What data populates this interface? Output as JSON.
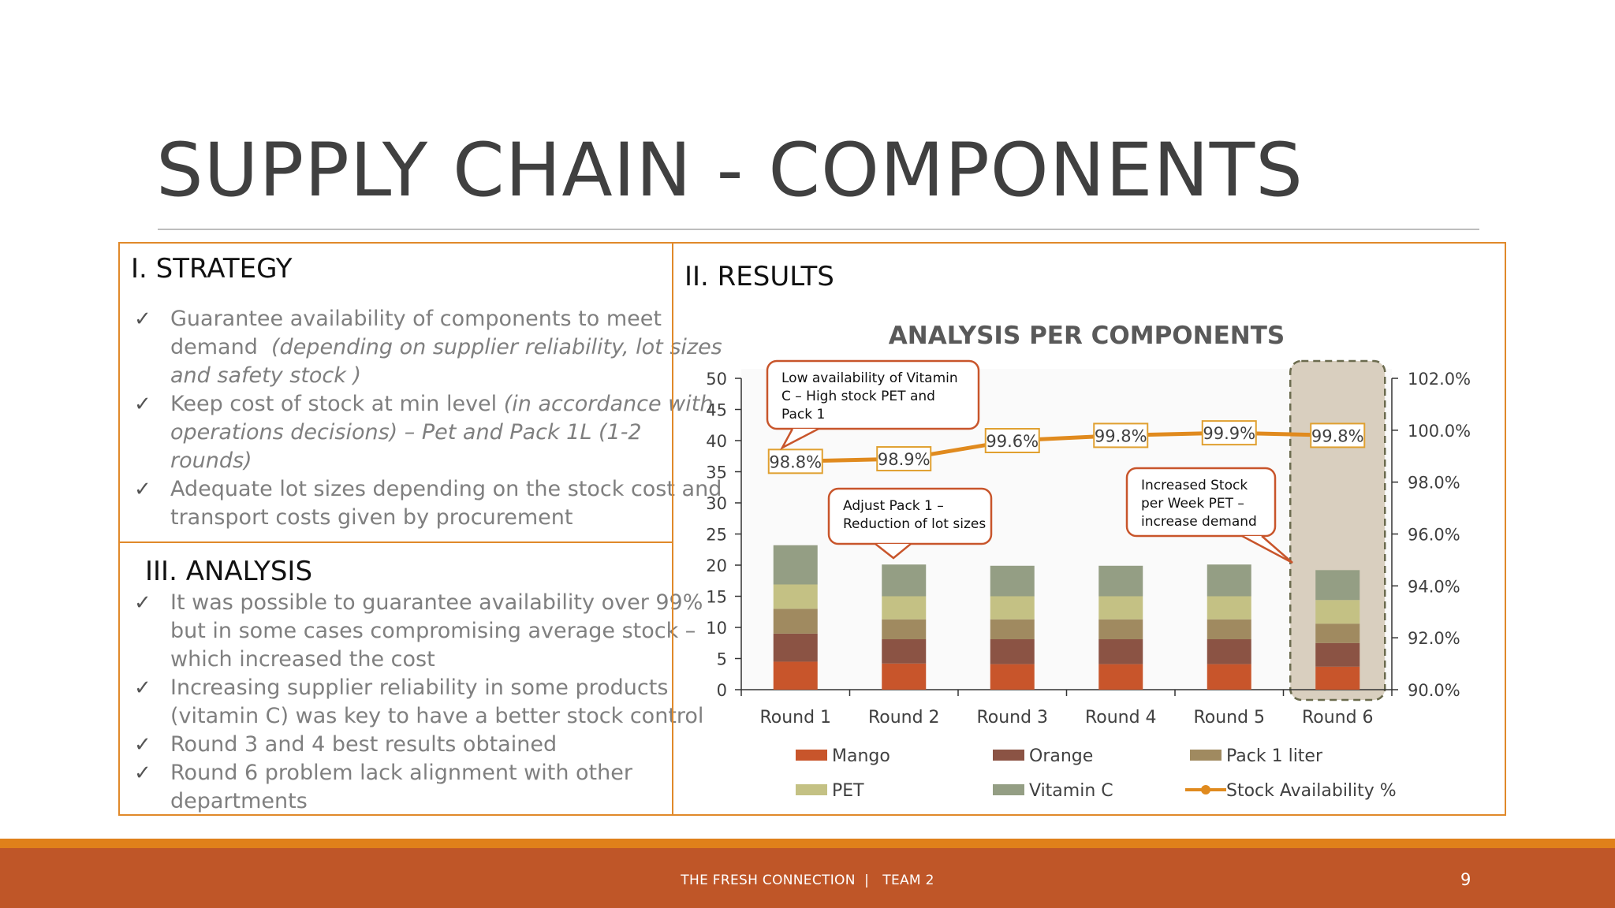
{
  "slide": {
    "title": "SUPPLY CHAIN - COMPONENTS",
    "page_number": "9",
    "footer": "THE FRESH CONNECTION  |   TEAM 2"
  },
  "strategy": {
    "heading": "I. STRATEGY",
    "items": [
      {
        "lines": [
          [
            {
              "t": "Guarantee availability of components to meet",
              "i": false
            }
          ],
          [
            {
              "t": "demand  ",
              "i": false
            },
            {
              "t": "(depending on supplier reliability, lot sizes",
              "i": true
            }
          ],
          [
            {
              "t": "and safety stock )",
              "i": true
            }
          ]
        ]
      },
      {
        "lines": [
          [
            {
              "t": "Keep cost of stock at min level ",
              "i": false
            },
            {
              "t": "(in accordance with",
              "i": true
            }
          ],
          [
            {
              "t": "operations decisions) – Pet and Pack 1L (1-2",
              "i": true
            }
          ],
          [
            {
              "t": "rounds)",
              "i": true
            }
          ]
        ]
      },
      {
        "lines": [
          [
            {
              "t": "Adequate lot sizes depending on the stock cost and",
              "i": false
            }
          ],
          [
            {
              "t": "transport costs given by procurement",
              "i": false
            }
          ]
        ]
      }
    ]
  },
  "analysis": {
    "heading": "III. ANALYSIS",
    "items": [
      {
        "lines": [
          [
            {
              "t": "It was possible to guarantee availability over 99%",
              "i": false
            }
          ],
          [
            {
              "t": "but in some cases compromising average stock –",
              "i": false
            }
          ],
          [
            {
              "t": "which increased the cost",
              "i": false
            }
          ]
        ]
      },
      {
        "lines": [
          [
            {
              "t": "Increasing supplier reliability in some products",
              "i": false
            }
          ],
          [
            {
              "t": "(vitamin C) was key to have a better stock control",
              "i": false
            }
          ]
        ]
      },
      {
        "lines": [
          [
            {
              "t": "Round 3 and 4 best results obtained",
              "i": false
            }
          ]
        ]
      },
      {
        "lines": [
          [
            {
              "t": "Round 6 problem lack alignment with other",
              "i": false
            }
          ],
          [
            {
              "t": "departments",
              "i": false
            }
          ]
        ]
      }
    ]
  },
  "results": {
    "heading": "II. RESULTS"
  },
  "check_glyph": "✓",
  "colors": {
    "accent": "#e0892a",
    "footer": "#bf5628",
    "Mango": "#c8552b",
    "Orange": "#8b5344",
    "Pack 1 liter": "#a08a60",
    "PET": "#c4c184",
    "Vitamin C": "#949e84",
    "Stock Availability %": "#e08a1e"
  },
  "chart_data": {
    "type": "bar",
    "stacked": true,
    "title": "ANALYSIS PER COMPONENTS",
    "categories": [
      "Round 1",
      "Round 2",
      "Round 3",
      "Round 4",
      "Round 5",
      "Round 6"
    ],
    "ylim": [
      0,
      50
    ],
    "yticks": [
      0,
      5,
      10,
      15,
      20,
      25,
      30,
      35,
      40,
      45,
      50
    ],
    "series": [
      {
        "name": "Mango",
        "values": [
          4.5,
          4.2,
          4.1,
          4.1,
          4.1,
          3.7
        ]
      },
      {
        "name": "Orange",
        "values": [
          4.5,
          3.9,
          4.0,
          4.0,
          4.0,
          3.8
        ]
      },
      {
        "name": "Pack 1 liter",
        "values": [
          4.0,
          3.2,
          3.2,
          3.2,
          3.2,
          3.1
        ]
      },
      {
        "name": "PET",
        "values": [
          3.9,
          3.7,
          3.7,
          3.7,
          3.7,
          3.8
        ]
      },
      {
        "name": "Vitamin C",
        "values": [
          6.3,
          5.1,
          4.9,
          4.9,
          5.1,
          4.8
        ]
      }
    ],
    "line_series": {
      "name": "Stock Availability %",
      "values": [
        98.8,
        98.9,
        99.6,
        99.8,
        99.9,
        99.8
      ],
      "labels": [
        "98.8%",
        "98.9%",
        "99.6%",
        "99.8%",
        "99.9%",
        "99.8%"
      ],
      "axis": "secondary"
    },
    "y2lim": [
      90,
      102
    ],
    "y2ticks": [
      90,
      92,
      94,
      96,
      98,
      100,
      102
    ],
    "y2ticklabels": [
      "90.0%",
      "92.0%",
      "94.0%",
      "96.0%",
      "98.0%",
      "100.0%",
      "102.0%"
    ],
    "annotations": [
      {
        "lines": [
          "Low availability of Vitamin",
          "C – High stock PET and",
          "Pack 1"
        ],
        "target": "Round 1"
      },
      {
        "lines": [
          "Adjust Pack 1 –",
          "Reduction of lot sizes"
        ],
        "target": "Round 2"
      },
      {
        "lines": [
          "Increased Stock",
          "per Week PET –",
          "increase demand"
        ],
        "target": "Round 6"
      }
    ],
    "highlight": "Round 6",
    "legend_position": "bottom"
  }
}
